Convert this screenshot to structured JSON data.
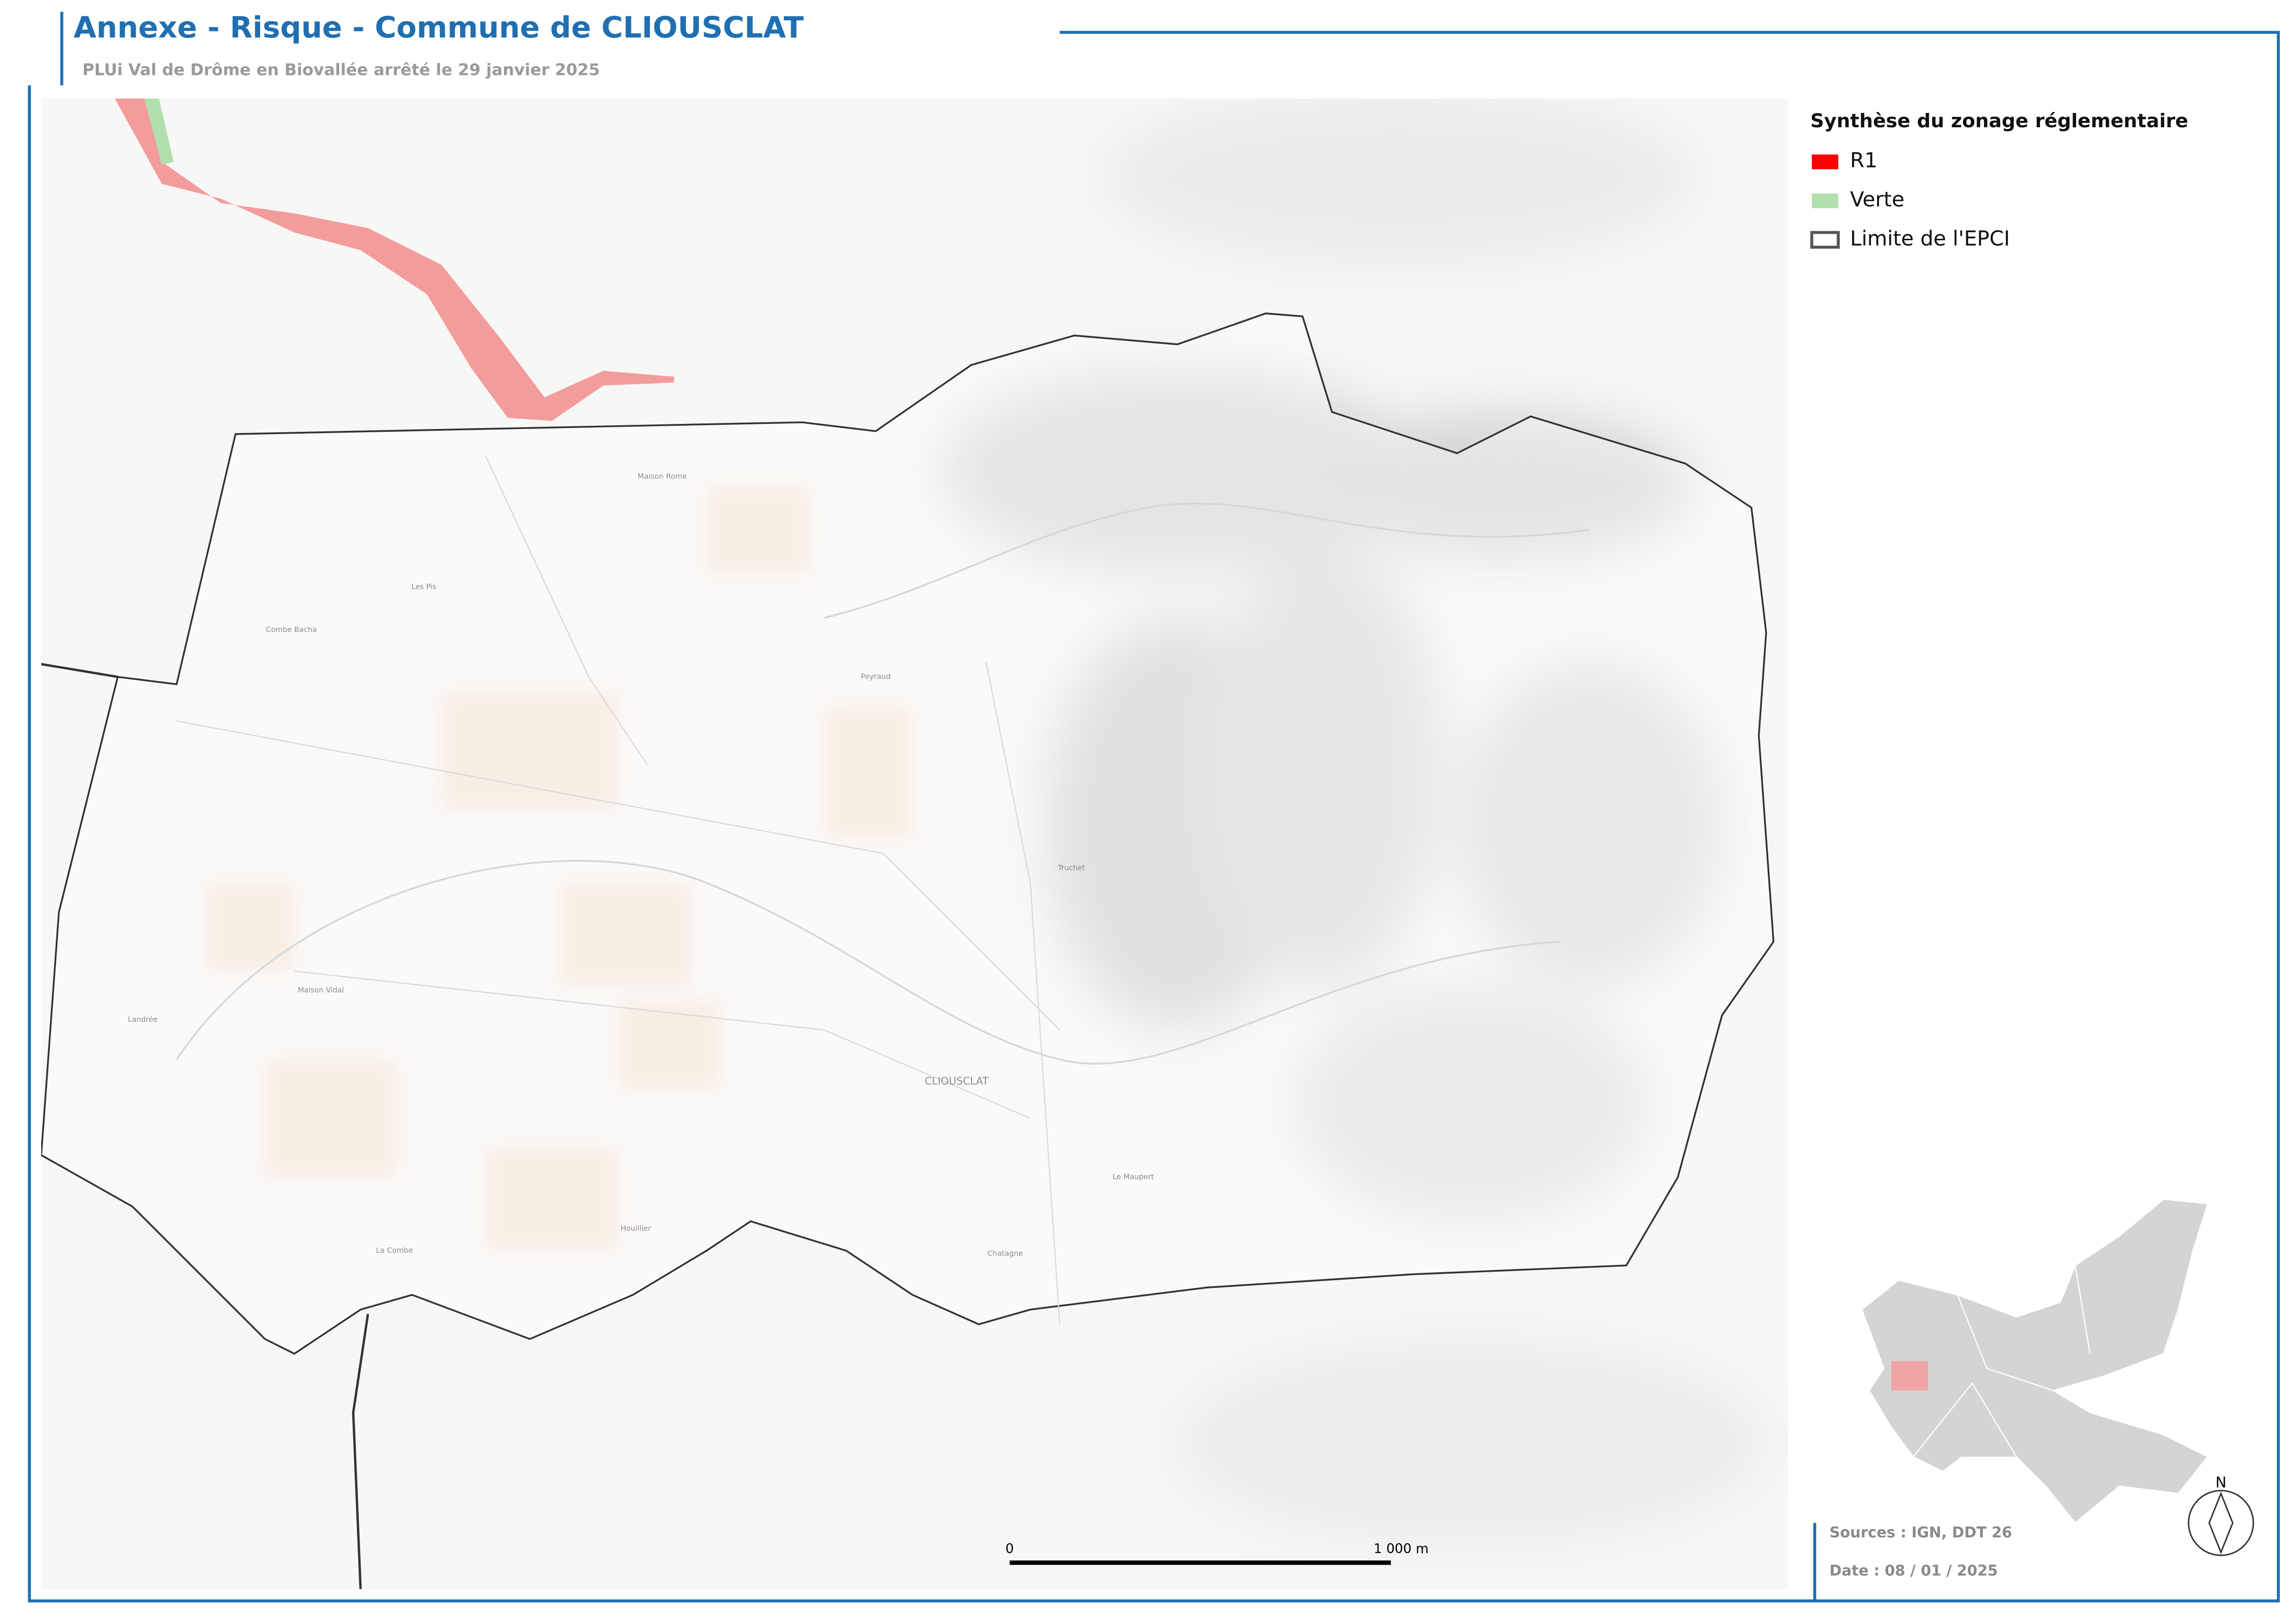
{
  "header": {
    "title": "Annexe - Risque - Commune de CLIOUSCLAT",
    "subtitle": "PLUi Val de Drôme en Biovallée arrêté le 29 janvier 2025"
  },
  "legend": {
    "title": "Synthèse du zonage réglementaire",
    "items": [
      {
        "label": "R1",
        "color": "#ff0000"
      },
      {
        "label": "Verte",
        "color": "#b2dfae"
      },
      {
        "label": "Limite de l'EPCI",
        "color": "#555555"
      }
    ]
  },
  "map": {
    "places": [
      "CLIOUSCLAT",
      "Maison Rome",
      "Combe Bacha",
      "Les Pis",
      "Peyraud",
      "Truchet",
      "Le Maupert",
      "Chatagne",
      "Houillier",
      "La Combe",
      "Maison Vidal",
      "Landrée"
    ]
  },
  "scale": {
    "start": "0",
    "end": "1 000 m"
  },
  "north": "N",
  "footer": {
    "sources": "Sources : IGN, DDT 26",
    "date": "Date : 08 / 01 / 2025"
  }
}
